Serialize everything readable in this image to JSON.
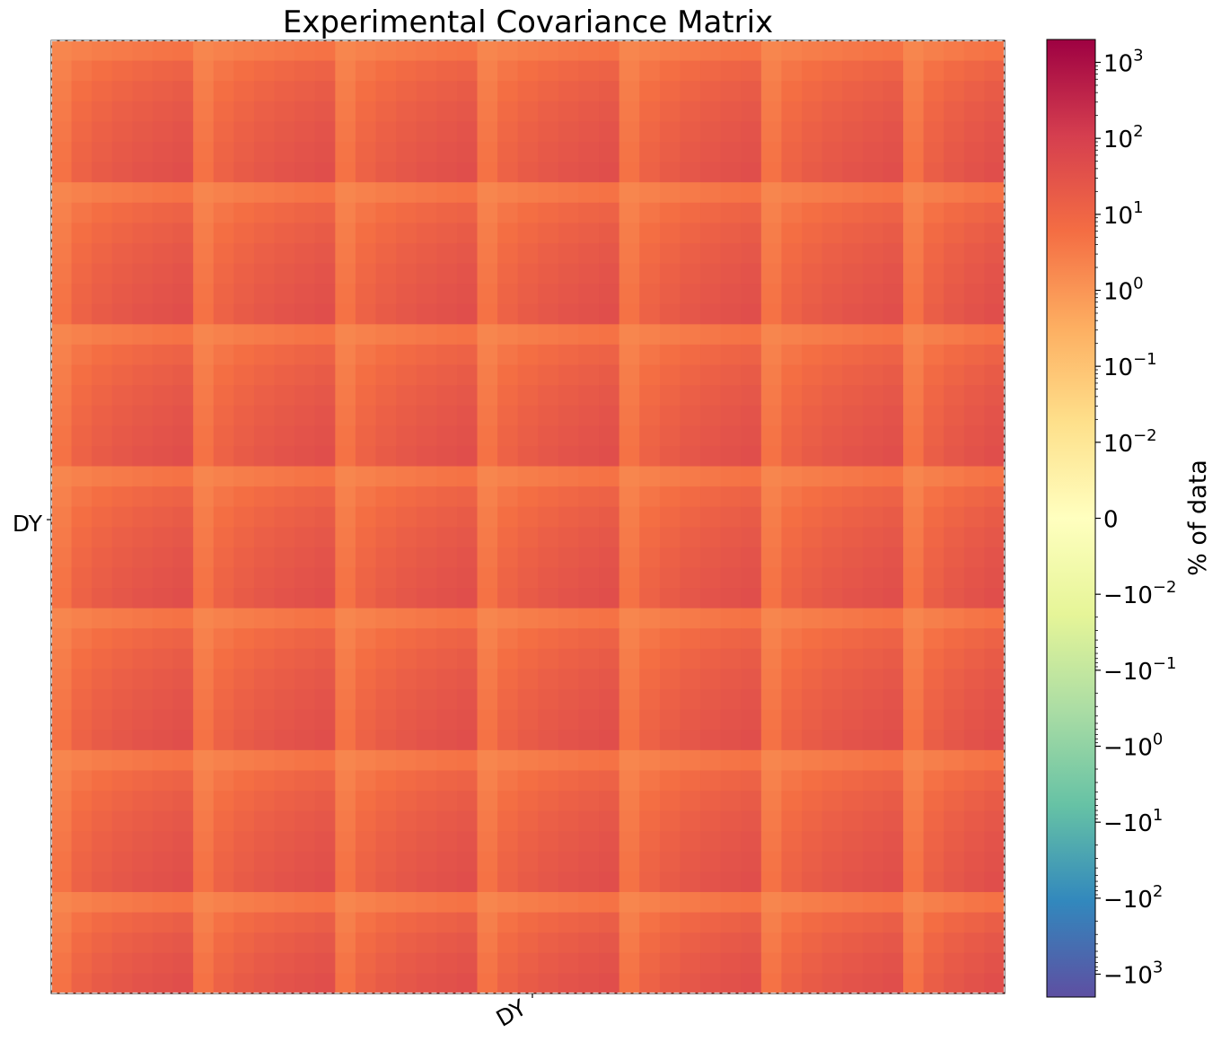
{
  "chart_data": {
    "type": "heatmap",
    "title": "Experimental Covariance Matrix",
    "colorbar_label": "% of data",
    "x_tick_labels": [
      "DY"
    ],
    "y_tick_labels": [
      "DY"
    ],
    "block_labels": [
      "DY"
    ],
    "scale": "symlog",
    "colormap": "Spectral_r",
    "colormap_stops": [
      "#9e0142",
      "#d53e4f",
      "#f46d43",
      "#fdae61",
      "#fee08b",
      "#ffffbf",
      "#e6f598",
      "#abdda4",
      "#66c2a5",
      "#3288bd",
      "#5e4fa2"
    ],
    "value_range": [
      -2000,
      2000
    ],
    "colorbar_ticks_positive": [
      {
        "label": "10",
        "exp": "3",
        "value": 1000
      },
      {
        "label": "10",
        "exp": "2",
        "value": 100
      },
      {
        "label": "10",
        "exp": "1",
        "value": 10
      },
      {
        "label": "10",
        "exp": "0",
        "value": 1
      },
      {
        "label": "10",
        "exp": "−1",
        "value": 0.1
      },
      {
        "label": "10",
        "exp": "−2",
        "value": 0.01
      }
    ],
    "colorbar_tick_zero": {
      "label": "0",
      "value": 0
    },
    "colorbar_ticks_negative": [
      {
        "label": "−10",
        "exp": "−2",
        "value": -0.01
      },
      {
        "label": "−10",
        "exp": "−1",
        "value": -0.1
      },
      {
        "label": "−10",
        "exp": "0",
        "value": -1
      },
      {
        "label": "−10",
        "exp": "1",
        "value": -10
      },
      {
        "label": "−10",
        "exp": "2",
        "value": -100
      },
      {
        "label": "−10",
        "exp": "3",
        "value": -1000
      }
    ],
    "matrix_size": 47,
    "sub_block_sizes": [
      7,
      7,
      7,
      7,
      7,
      7,
      5
    ],
    "min_value": 2,
    "max_value": 40
  }
}
